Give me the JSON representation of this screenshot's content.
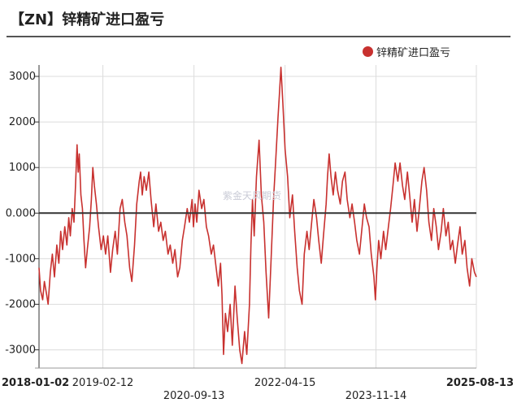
{
  "title": "【ZN】锌精矿进口盈亏",
  "watermark": "紫金天风期货",
  "colors": {
    "series": "#c8312f",
    "zero_line": "#333333",
    "grid": "#dcdcdc",
    "axis": "#333333"
  },
  "chart_data": {
    "type": "line",
    "title": "【ZN】锌精矿进口盈亏",
    "legend_position": "top-right",
    "grid": true,
    "ylim": [
      -3400,
      3250
    ],
    "yticks": [
      {
        "value": 3000,
        "label": "3000"
      },
      {
        "value": 2000,
        "label": "2000"
      },
      {
        "value": 1000,
        "label": "1000"
      },
      {
        "value": 0,
        "label": "0.000"
      },
      {
        "value": -1000,
        "label": "-1000"
      },
      {
        "value": -2000,
        "label": "-2000"
      },
      {
        "value": -3000,
        "label": "-3000"
      }
    ],
    "xlim": [
      "2018-01-02",
      "2025-08-13"
    ],
    "xticks": [
      {
        "date": "2018-01-02",
        "label": "2018-01-02",
        "row": 1,
        "bold": true
      },
      {
        "date": "2019-02-12",
        "label": "2019-02-12",
        "row": 1,
        "bold": false
      },
      {
        "date": "2020-09-13",
        "label": "2020-09-13",
        "row": 2,
        "bold": false
      },
      {
        "date": "2022-04-15",
        "label": "2022-04-15",
        "row": 1,
        "bold": false
      },
      {
        "date": "2023-11-14",
        "label": "2023-11-14",
        "row": 2,
        "bold": false
      },
      {
        "date": "2025-08-13",
        "label": "2025-08-13",
        "row": 1,
        "bold": true
      }
    ],
    "series": [
      {
        "name": "锌精矿进口盈亏",
        "color": "#c8312f",
        "points": [
          [
            "2018-01-02",
            -1200
          ],
          [
            "2018-01-12",
            -1700
          ],
          [
            "2018-01-25",
            -1900
          ],
          [
            "2018-02-05",
            -1500
          ],
          [
            "2018-02-20",
            -1800
          ],
          [
            "2018-03-01",
            -2000
          ],
          [
            "2018-03-15",
            -1300
          ],
          [
            "2018-03-28",
            -900
          ],
          [
            "2018-04-10",
            -1400
          ],
          [
            "2018-04-25",
            -700
          ],
          [
            "2018-05-08",
            -1100
          ],
          [
            "2018-05-20",
            -400
          ],
          [
            "2018-06-01",
            -800
          ],
          [
            "2018-06-15",
            -300
          ],
          [
            "2018-06-28",
            -700
          ],
          [
            "2018-07-10",
            -100
          ],
          [
            "2018-07-20",
            -500
          ],
          [
            "2018-08-01",
            100
          ],
          [
            "2018-08-12",
            -200
          ],
          [
            "2018-08-22",
            600
          ],
          [
            "2018-09-01",
            1500
          ],
          [
            "2018-09-08",
            900
          ],
          [
            "2018-09-15",
            1300
          ],
          [
            "2018-09-25",
            400
          ],
          [
            "2018-10-05",
            100
          ],
          [
            "2018-10-15",
            -600
          ],
          [
            "2018-10-25",
            -1200
          ],
          [
            "2018-11-05",
            -800
          ],
          [
            "2018-11-20",
            -300
          ],
          [
            "2018-12-01",
            300
          ],
          [
            "2018-12-10",
            1000
          ],
          [
            "2018-12-20",
            600
          ],
          [
            "2019-01-02",
            200
          ],
          [
            "2019-01-15",
            -300
          ],
          [
            "2019-02-01",
            -800
          ],
          [
            "2019-02-15",
            -500
          ],
          [
            "2019-03-01",
            -900
          ],
          [
            "2019-03-15",
            -500
          ],
          [
            "2019-04-01",
            -1300
          ],
          [
            "2019-04-15",
            -800
          ],
          [
            "2019-05-01",
            -400
          ],
          [
            "2019-05-15",
            -900
          ],
          [
            "2019-06-01",
            100
          ],
          [
            "2019-06-15",
            300
          ],
          [
            "2019-07-01",
            -200
          ],
          [
            "2019-07-15",
            -500
          ],
          [
            "2019-08-01",
            -1200
          ],
          [
            "2019-08-15",
            -1500
          ],
          [
            "2019-09-01",
            -700
          ],
          [
            "2019-09-15",
            200
          ],
          [
            "2019-10-01",
            700
          ],
          [
            "2019-10-10",
            900
          ],
          [
            "2019-10-20",
            400
          ],
          [
            "2019-11-01",
            800
          ],
          [
            "2019-11-15",
            500
          ],
          [
            "2019-12-01",
            900
          ],
          [
            "2019-12-15",
            300
          ],
          [
            "2020-01-01",
            -300
          ],
          [
            "2020-01-15",
            200
          ],
          [
            "2020-02-01",
            -400
          ],
          [
            "2020-02-15",
            -200
          ],
          [
            "2020-03-01",
            -600
          ],
          [
            "2020-03-15",
            -400
          ],
          [
            "2020-04-01",
            -900
          ],
          [
            "2020-04-15",
            -700
          ],
          [
            "2020-05-01",
            -1100
          ],
          [
            "2020-05-15",
            -800
          ],
          [
            "2020-06-01",
            -1400
          ],
          [
            "2020-06-15",
            -1200
          ],
          [
            "2020-07-01",
            -600
          ],
          [
            "2020-07-15",
            -300
          ],
          [
            "2020-08-01",
            100
          ],
          [
            "2020-08-15",
            -200
          ],
          [
            "2020-09-01",
            300
          ],
          [
            "2020-09-10",
            -300
          ],
          [
            "2020-09-20",
            200
          ],
          [
            "2020-10-01",
            -200
          ],
          [
            "2020-10-15",
            500
          ],
          [
            "2020-11-01",
            100
          ],
          [
            "2020-11-15",
            300
          ],
          [
            "2020-12-01",
            -300
          ],
          [
            "2020-12-15",
            -500
          ],
          [
            "2021-01-01",
            -900
          ],
          [
            "2021-01-15",
            -700
          ],
          [
            "2021-02-01",
            -1200
          ],
          [
            "2021-02-15",
            -1600
          ],
          [
            "2021-03-01",
            -1100
          ],
          [
            "2021-03-10",
            -1800
          ],
          [
            "2021-03-20",
            -3100
          ],
          [
            "2021-04-01",
            -2200
          ],
          [
            "2021-04-15",
            -2600
          ],
          [
            "2021-05-01",
            -2000
          ],
          [
            "2021-05-15",
            -2900
          ],
          [
            "2021-06-01",
            -1600
          ],
          [
            "2021-06-15",
            -2300
          ],
          [
            "2021-07-01",
            -3000
          ],
          [
            "2021-07-15",
            -3300
          ],
          [
            "2021-08-01",
            -2600
          ],
          [
            "2021-08-15",
            -3100
          ],
          [
            "2021-09-01",
            -2000
          ],
          [
            "2021-09-10",
            -700
          ],
          [
            "2021-09-20",
            300
          ],
          [
            "2021-10-01",
            -500
          ],
          [
            "2021-10-15",
            800
          ],
          [
            "2021-11-01",
            1600
          ],
          [
            "2021-11-15",
            400
          ],
          [
            "2021-12-01",
            -200
          ],
          [
            "2021-12-15",
            -1300
          ],
          [
            "2022-01-01",
            -2300
          ],
          [
            "2022-01-15",
            -1100
          ],
          [
            "2022-02-01",
            300
          ],
          [
            "2022-02-15",
            1200
          ],
          [
            "2022-03-01",
            2100
          ],
          [
            "2022-03-10",
            2600
          ],
          [
            "2022-03-20",
            3200
          ],
          [
            "2022-04-01",
            2400
          ],
          [
            "2022-04-15",
            1400
          ],
          [
            "2022-05-01",
            800
          ],
          [
            "2022-05-15",
            -100
          ],
          [
            "2022-06-01",
            400
          ],
          [
            "2022-06-15",
            -400
          ],
          [
            "2022-07-01",
            -1200
          ],
          [
            "2022-07-15",
            -1700
          ],
          [
            "2022-08-01",
            -2000
          ],
          [
            "2022-08-15",
            -900
          ],
          [
            "2022-09-01",
            -400
          ],
          [
            "2022-09-15",
            -800
          ],
          [
            "2022-10-01",
            -200
          ],
          [
            "2022-10-15",
            300
          ],
          [
            "2022-11-01",
            -100
          ],
          [
            "2022-11-15",
            -600
          ],
          [
            "2022-12-01",
            -1100
          ],
          [
            "2022-12-15",
            -500
          ],
          [
            "2023-01-01",
            200
          ],
          [
            "2023-01-10",
            800
          ],
          [
            "2023-01-20",
            1300
          ],
          [
            "2023-02-01",
            800
          ],
          [
            "2023-02-15",
            400
          ],
          [
            "2023-03-01",
            900
          ],
          [
            "2023-03-15",
            500
          ],
          [
            "2023-04-01",
            200
          ],
          [
            "2023-04-15",
            700
          ],
          [
            "2023-05-01",
            900
          ],
          [
            "2023-05-15",
            300
          ],
          [
            "2023-06-01",
            -100
          ],
          [
            "2023-06-15",
            200
          ],
          [
            "2023-07-01",
            -200
          ],
          [
            "2023-07-15",
            -600
          ],
          [
            "2023-08-01",
            -900
          ],
          [
            "2023-08-15",
            -400
          ],
          [
            "2023-09-01",
            200
          ],
          [
            "2023-09-15",
            -100
          ],
          [
            "2023-10-01",
            -300
          ],
          [
            "2023-10-15",
            -900
          ],
          [
            "2023-11-01",
            -1400
          ],
          [
            "2023-11-10",
            -1900
          ],
          [
            "2023-11-20",
            -1200
          ],
          [
            "2023-12-01",
            -600
          ],
          [
            "2023-12-15",
            -1000
          ],
          [
            "2024-01-01",
            -400
          ],
          [
            "2024-01-15",
            -800
          ],
          [
            "2024-02-01",
            -300
          ],
          [
            "2024-02-15",
            100
          ],
          [
            "2024-03-01",
            600
          ],
          [
            "2024-03-15",
            1100
          ],
          [
            "2024-04-01",
            700
          ],
          [
            "2024-04-15",
            1100
          ],
          [
            "2024-05-01",
            600
          ],
          [
            "2024-05-15",
            300
          ],
          [
            "2024-06-01",
            900
          ],
          [
            "2024-06-15",
            400
          ],
          [
            "2024-07-01",
            -200
          ],
          [
            "2024-07-15",
            300
          ],
          [
            "2024-08-01",
            -400
          ],
          [
            "2024-08-15",
            100
          ],
          [
            "2024-09-01",
            700
          ],
          [
            "2024-09-15",
            1000
          ],
          [
            "2024-10-01",
            500
          ],
          [
            "2024-10-15",
            -200
          ],
          [
            "2024-11-01",
            -600
          ],
          [
            "2024-11-15",
            100
          ],
          [
            "2024-12-01",
            -300
          ],
          [
            "2024-12-15",
            -800
          ],
          [
            "2025-01-01",
            -400
          ],
          [
            "2025-01-15",
            100
          ],
          [
            "2025-02-01",
            -500
          ],
          [
            "2025-02-15",
            -200
          ],
          [
            "2025-03-01",
            -800
          ],
          [
            "2025-03-15",
            -600
          ],
          [
            "2025-04-01",
            -1100
          ],
          [
            "2025-04-15",
            -700
          ],
          [
            "2025-05-01",
            -300
          ],
          [
            "2025-05-15",
            -900
          ],
          [
            "2025-06-01",
            -600
          ],
          [
            "2025-06-15",
            -1200
          ],
          [
            "2025-07-01",
            -1600
          ],
          [
            "2025-07-15",
            -1000
          ],
          [
            "2025-08-01",
            -1300
          ],
          [
            "2025-08-13",
            -1400
          ]
        ]
      }
    ]
  }
}
